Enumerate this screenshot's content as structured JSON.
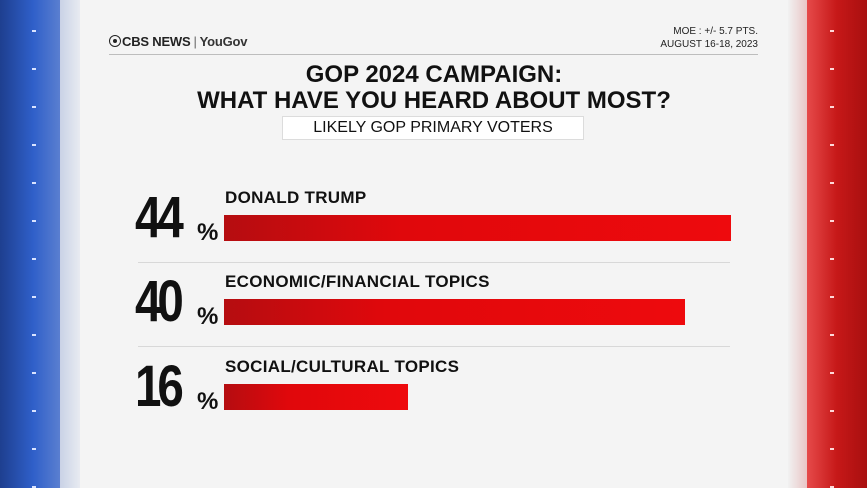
{
  "header": {
    "brand_network": "CBS NEWS",
    "brand_partner": "YouGov",
    "moe": "MOE : +/- 5.7 PTS.",
    "dates": "AUGUST 16-18, 2023"
  },
  "colors": {
    "bar": "#e0080c",
    "left_band": "#2f5fc9",
    "right_band": "#c61818",
    "panel": "#f4f4f4"
  },
  "chart_data": {
    "type": "bar",
    "orientation": "horizontal",
    "title": [
      "GOP 2024 CAMPAIGN:",
      "WHAT HAVE YOU HEARD ABOUT MOST?"
    ],
    "subtitle": "LIKELY GOP PRIMARY VOTERS",
    "categories": [
      "DONALD TRUMP",
      "ECONOMIC/FINANCIAL TOPICS",
      "SOCIAL/CULTURAL TOPICS"
    ],
    "values": [
      44,
      40,
      16
    ],
    "value_labels": [
      "44",
      "40",
      "16"
    ],
    "unit": "%",
    "xlim": [
      0,
      44
    ]
  }
}
